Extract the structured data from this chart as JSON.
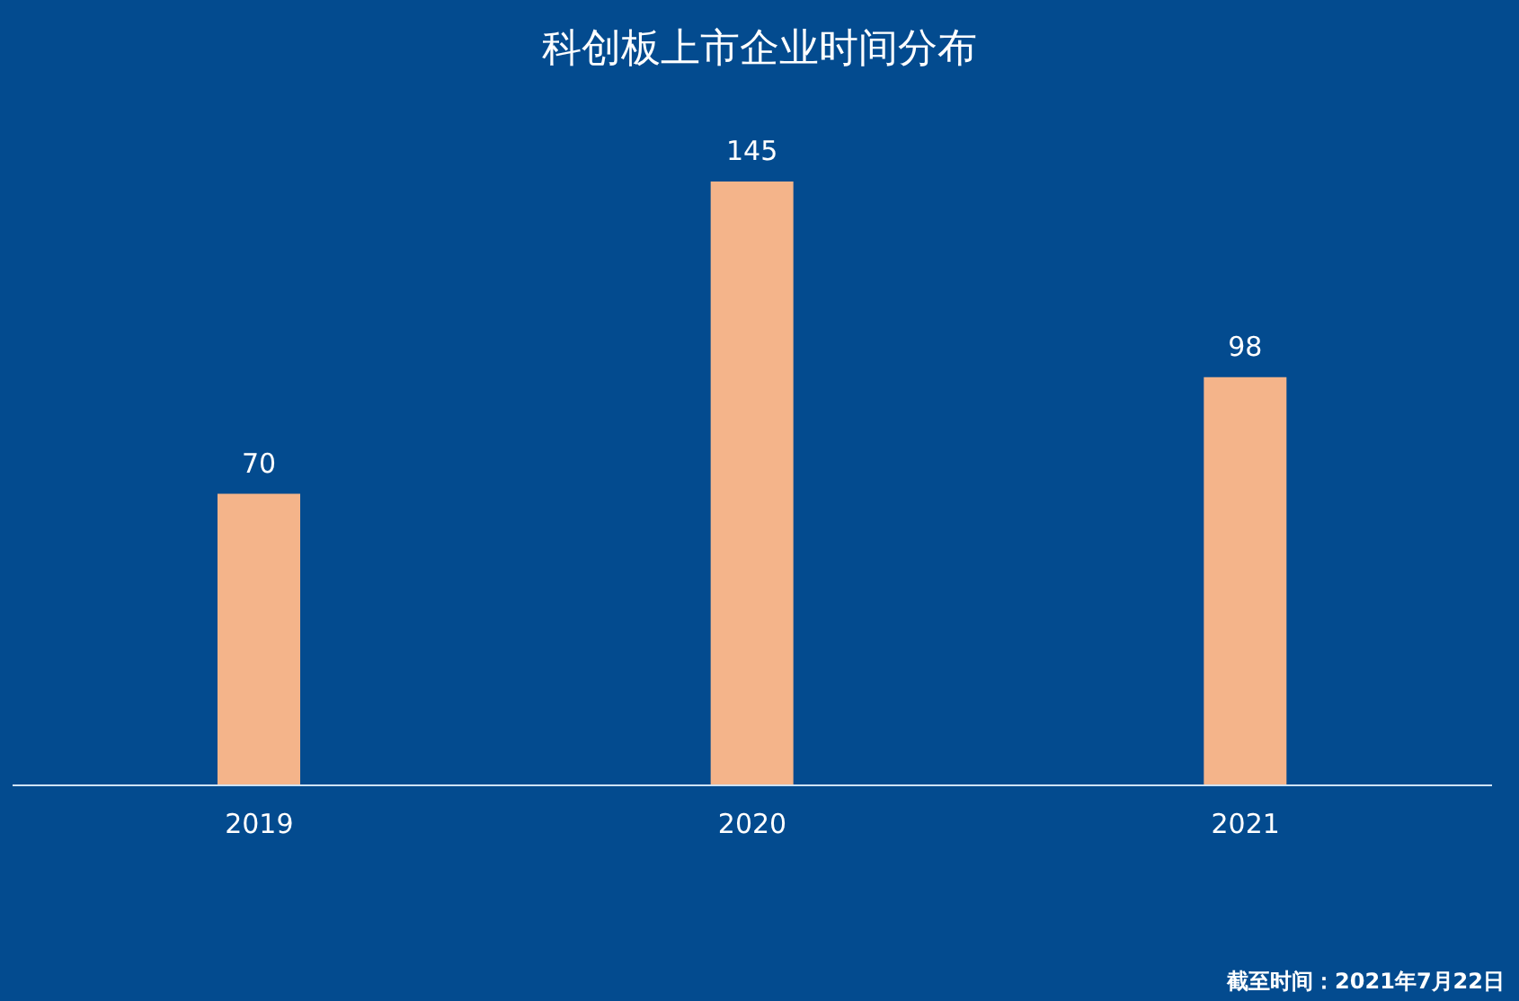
{
  "chart_data": {
    "type": "bar",
    "title": "科创板上市企业时间分布",
    "categories": [
      "2019",
      "2020",
      "2021"
    ],
    "values": [
      70,
      145,
      98
    ],
    "color": "#f4b48a",
    "data_labels": true,
    "annotations": [
      "截至时间：2021年7月22日"
    ]
  }
}
